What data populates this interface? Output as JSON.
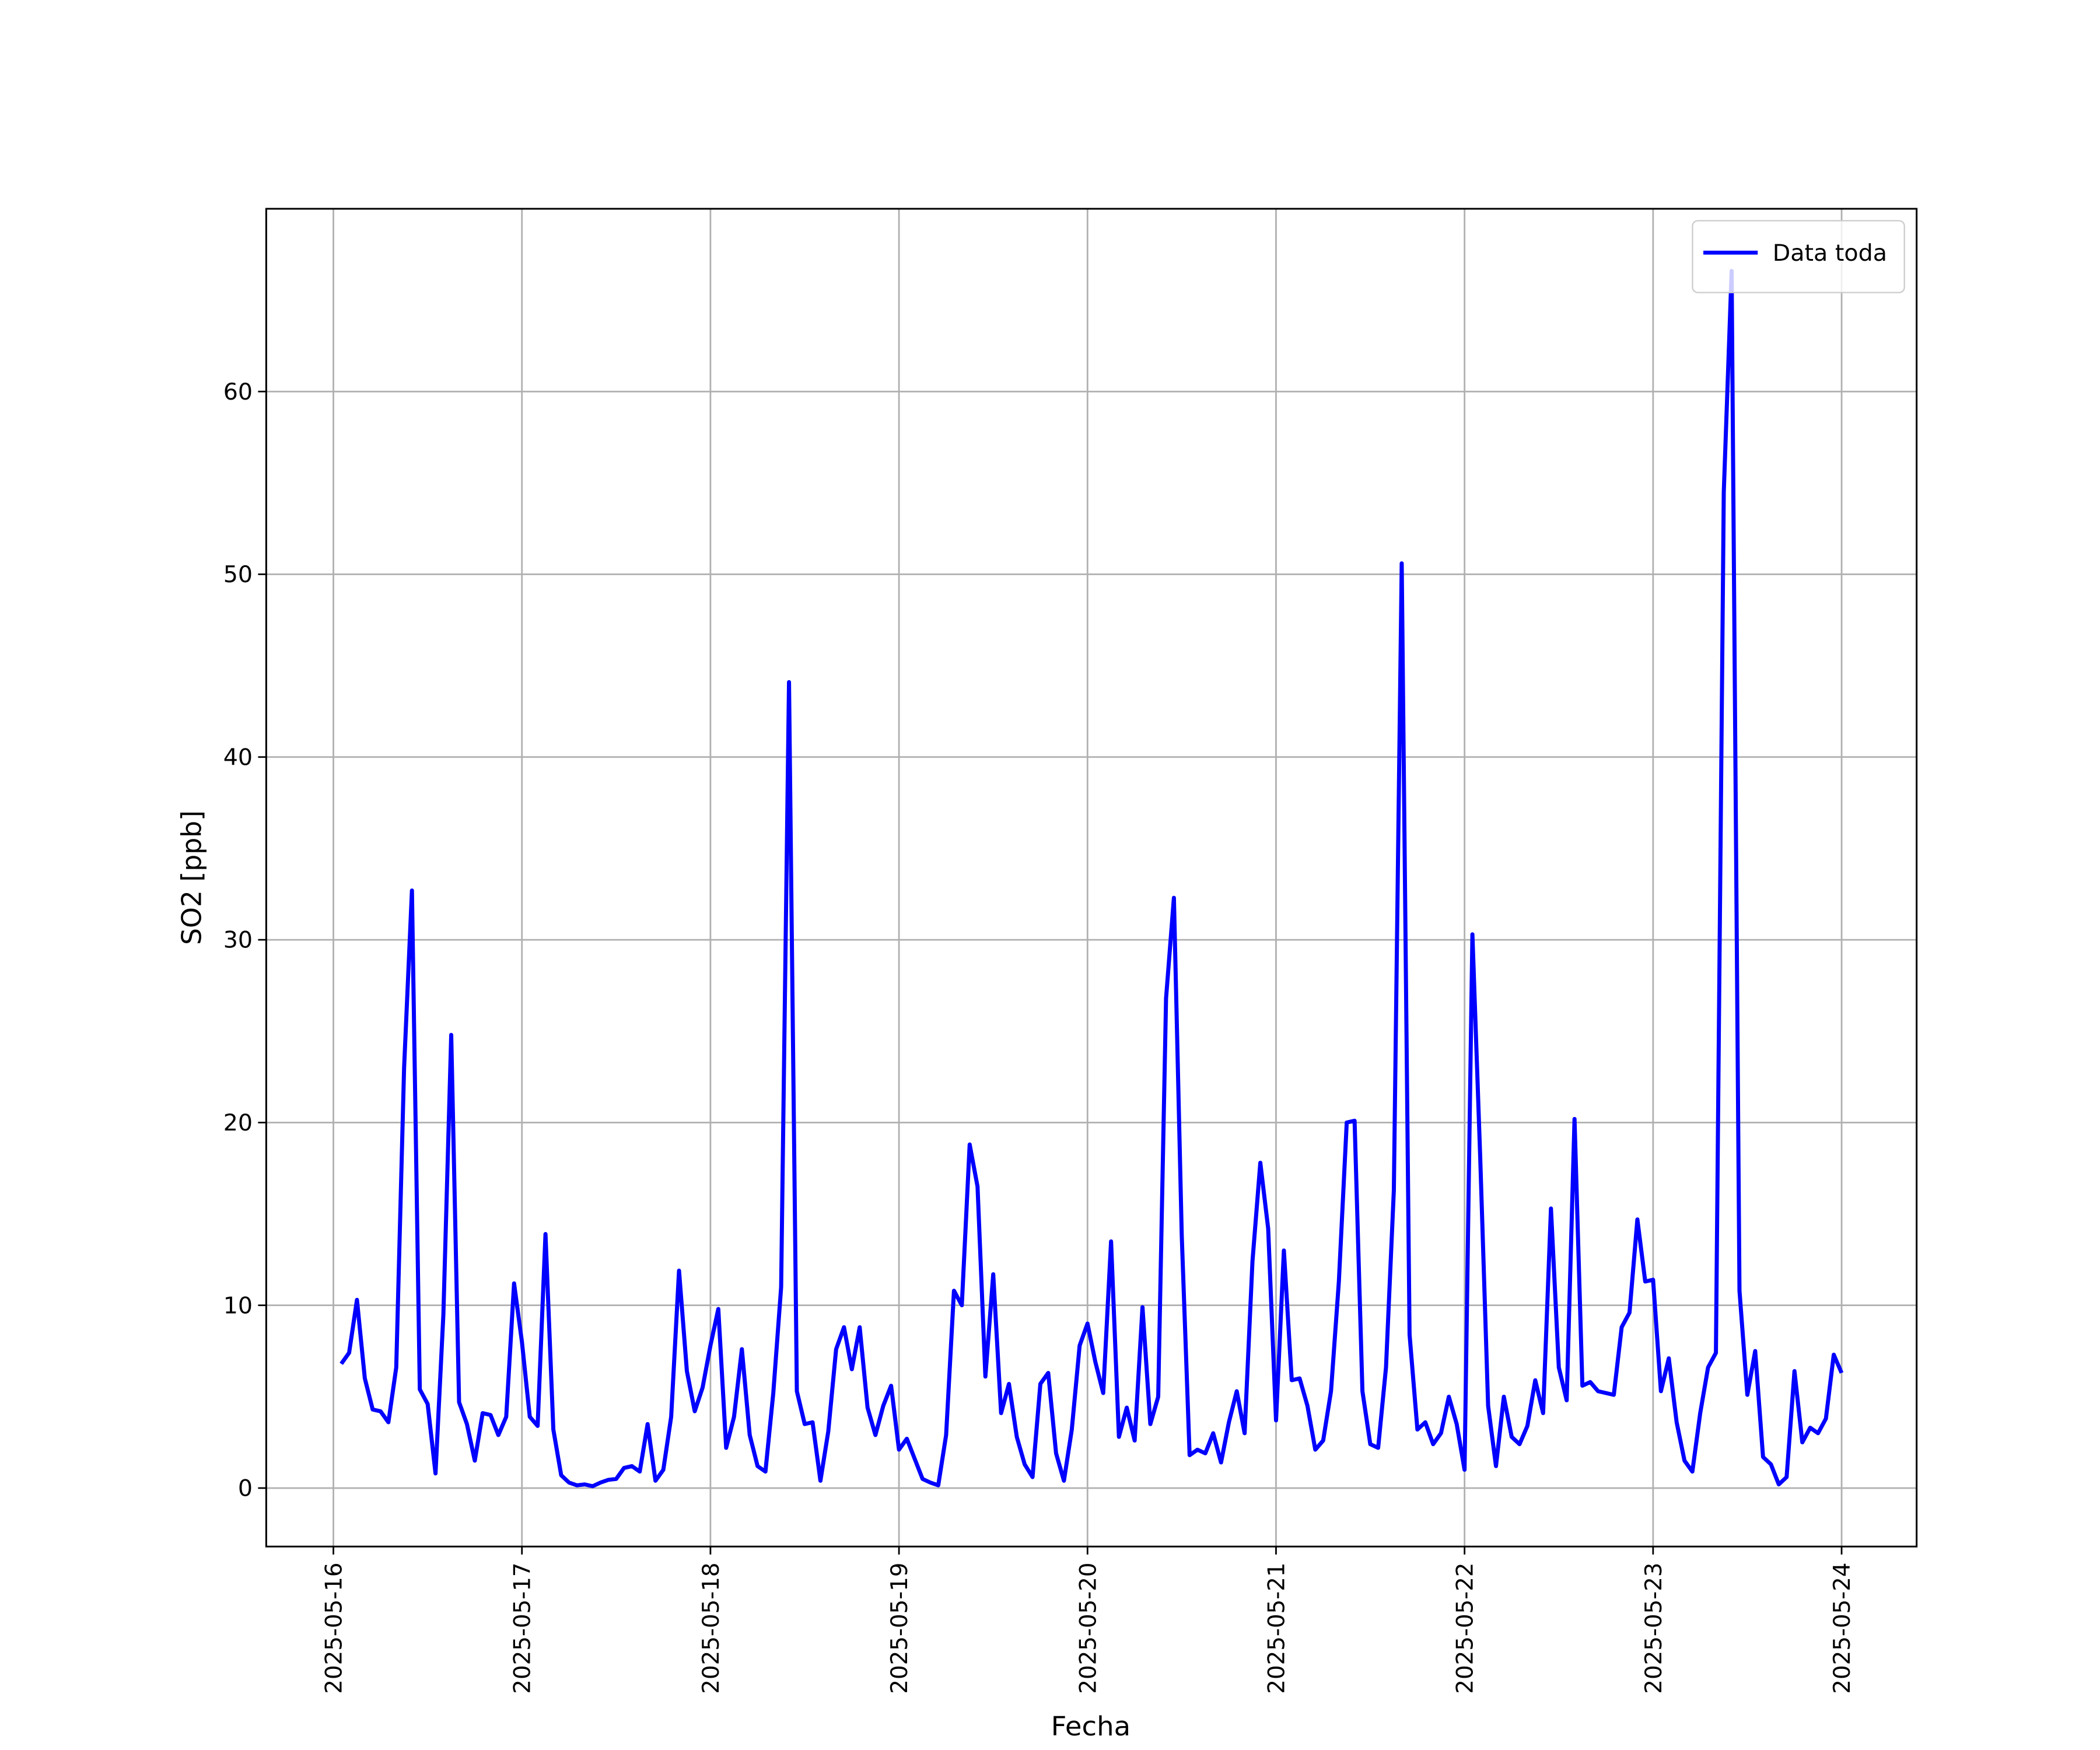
{
  "chart_data": {
    "type": "line",
    "xlabel": "Fecha",
    "ylabel": "SO2 [ppb]",
    "series": [
      {
        "name": "Data toda",
        "color": "#0000ff",
        "values": [
          6.8,
          7.4,
          10.3,
          6.0,
          4.3,
          4.2,
          3.6,
          6.6,
          23,
          32.7,
          5.4,
          4.6,
          0.8,
          9.5,
          24.8,
          4.7,
          3.5,
          1.5,
          4.1,
          4.0,
          2.9,
          3.9,
          11.2,
          8,
          3.9,
          3.4,
          13.9,
          3.2,
          0.7,
          0.3,
          0.15,
          0.2,
          0.1,
          0.3,
          0.45,
          0.5,
          1.1,
          1.2,
          0.9,
          3.5,
          0.4,
          1.0,
          3.9,
          11.9,
          6.4,
          4.2,
          5.5,
          7.8,
          9.8,
          2.2,
          3.9,
          7.6,
          2.9,
          1.2,
          0.9,
          5.2,
          11,
          44.1,
          5.3,
          3.5,
          3.6,
          0.4,
          3.1,
          7.6,
          8.8,
          6.5,
          8.8,
          4.4,
          2.9,
          4.5,
          5.6,
          2.1,
          2.7,
          1.6,
          0.5,
          0.3,
          0.15,
          2.9,
          10.8,
          10.0,
          18.8,
          16.5,
          6.1,
          11.7,
          4.1,
          5.7,
          2.8,
          1.3,
          0.6,
          5.7,
          6.3,
          1.9,
          0.4,
          3.2,
          7.8,
          9.0,
          6.9,
          5.2,
          13.5,
          2.8,
          4.4,
          2.6,
          9.9,
          3.5,
          5.0,
          26.8,
          32.3,
          13.8,
          1.8,
          2.1,
          1.9,
          3.0,
          1.4,
          3.6,
          5.3,
          3.0,
          12.4,
          17.8,
          14.2,
          3.7,
          13.0,
          5.9,
          6.0,
          4.5,
          2.1,
          2.6,
          5.3,
          11.3,
          20.0,
          20.1,
          5.3,
          2.4,
          2.2,
          6.6,
          16.3,
          50.6,
          8.4,
          3.2,
          3.6,
          2.4,
          3.0,
          5.0,
          3.5,
          1.0,
          30.3,
          18,
          4.5,
          1.2,
          5.0,
          2.8,
          2.4,
          3.4,
          5.9,
          4.1,
          15.3,
          6.6,
          4.8,
          20.2,
          5.6,
          5.8,
          5.3,
          5.2,
          5.1,
          8.8,
          9.6,
          14.7,
          11.3,
          11.4,
          5.3,
          7.1,
          3.6,
          1.5,
          0.9,
          4.1,
          6.6,
          7.4,
          54.5,
          66.6,
          10.8,
          5.1,
          7.5,
          1.7,
          1.3,
          0.2,
          0.6,
          6.4,
          2.5,
          3.3,
          3.0,
          3.8,
          7.3,
          6.3
        ]
      }
    ],
    "x": [
      "2025-05-16 01:00",
      "2025-05-16 02:00",
      "2025-05-16 03:00",
      "2025-05-16 04:00",
      "2025-05-16 05:00",
      "2025-05-16 06:00",
      "2025-05-16 07:00",
      "2025-05-16 08:00",
      "2025-05-16 09:00",
      "2025-05-16 10:00",
      "2025-05-16 11:00",
      "2025-05-16 12:00",
      "2025-05-16 13:00",
      "2025-05-16 14:00",
      "2025-05-16 15:00",
      "2025-05-16 16:00",
      "2025-05-16 17:00",
      "2025-05-16 18:00",
      "2025-05-16 19:00",
      "2025-05-16 20:00",
      "2025-05-16 21:00",
      "2025-05-16 22:00",
      "2025-05-16 23:00",
      "2025-05-17 00:00",
      "2025-05-17 01:00",
      "2025-05-17 02:00",
      "2025-05-17 03:00",
      "2025-05-17 04:00",
      "2025-05-17 05:00",
      "2025-05-17 06:00",
      "2025-05-17 07:00",
      "2025-05-17 08:00",
      "2025-05-17 09:00",
      "2025-05-17 10:00",
      "2025-05-17 11:00",
      "2025-05-17 12:00",
      "2025-05-17 13:00",
      "2025-05-17 14:00",
      "2025-05-17 15:00",
      "2025-05-17 16:00",
      "2025-05-17 17:00",
      "2025-05-17 18:00",
      "2025-05-17 19:00",
      "2025-05-17 20:00",
      "2025-05-17 21:00",
      "2025-05-17 22:00",
      "2025-05-17 23:00",
      "2025-05-18 00:00",
      "2025-05-18 01:00",
      "2025-05-18 02:00",
      "2025-05-18 03:00",
      "2025-05-18 04:00",
      "2025-05-18 05:00",
      "2025-05-18 06:00",
      "2025-05-18 07:00",
      "2025-05-18 08:00",
      "2025-05-18 09:00",
      "2025-05-18 10:00",
      "2025-05-18 11:00",
      "2025-05-18 12:00",
      "2025-05-18 13:00",
      "2025-05-18 14:00",
      "2025-05-18 15:00",
      "2025-05-18 16:00",
      "2025-05-18 17:00",
      "2025-05-18 18:00",
      "2025-05-18 19:00",
      "2025-05-18 20:00",
      "2025-05-18 21:00",
      "2025-05-18 22:00",
      "2025-05-18 23:00",
      "2025-05-19 00:00",
      "2025-05-19 01:00",
      "2025-05-19 02:00",
      "2025-05-19 03:00",
      "2025-05-19 04:00",
      "2025-05-19 05:00",
      "2025-05-19 06:00",
      "2025-05-19 07:00",
      "2025-05-19 08:00",
      "2025-05-19 09:00",
      "2025-05-19 10:00",
      "2025-05-19 11:00",
      "2025-05-19 12:00",
      "2025-05-19 13:00",
      "2025-05-19 14:00",
      "2025-05-19 15:00",
      "2025-05-19 16:00",
      "2025-05-19 17:00",
      "2025-05-19 18:00",
      "2025-05-19 19:00",
      "2025-05-19 20:00",
      "2025-05-19 21:00",
      "2025-05-19 22:00",
      "2025-05-19 23:00",
      "2025-05-20 00:00",
      "2025-05-20 01:00",
      "2025-05-20 02:00",
      "2025-05-20 03:00",
      "2025-05-20 04:00",
      "2025-05-20 05:00",
      "2025-05-20 06:00",
      "2025-05-20 07:00",
      "2025-05-20 08:00",
      "2025-05-20 09:00",
      "2025-05-20 10:00",
      "2025-05-20 11:00",
      "2025-05-20 12:00",
      "2025-05-20 13:00",
      "2025-05-20 14:00",
      "2025-05-20 15:00",
      "2025-05-20 16:00",
      "2025-05-20 17:00",
      "2025-05-20 18:00",
      "2025-05-20 19:00",
      "2025-05-20 20:00",
      "2025-05-20 21:00",
      "2025-05-20 22:00",
      "2025-05-20 23:00",
      "2025-05-21 00:00",
      "2025-05-21 01:00",
      "2025-05-21 02:00",
      "2025-05-21 03:00",
      "2025-05-21 04:00",
      "2025-05-21 05:00",
      "2025-05-21 06:00",
      "2025-05-21 07:00",
      "2025-05-21 08:00",
      "2025-05-21 09:00",
      "2025-05-21 10:00",
      "2025-05-21 11:00",
      "2025-05-21 12:00",
      "2025-05-21 13:00",
      "2025-05-21 14:00",
      "2025-05-21 15:00",
      "2025-05-21 16:00",
      "2025-05-21 17:00",
      "2025-05-21 18:00",
      "2025-05-21 19:00",
      "2025-05-21 20:00",
      "2025-05-21 21:00",
      "2025-05-21 22:00",
      "2025-05-21 23:00",
      "2025-05-22 00:00",
      "2025-05-22 01:00",
      "2025-05-22 02:00",
      "2025-05-22 03:00",
      "2025-05-22 04:00",
      "2025-05-22 05:00",
      "2025-05-22 06:00",
      "2025-05-22 07:00",
      "2025-05-22 08:00",
      "2025-05-22 09:00",
      "2025-05-22 10:00",
      "2025-05-22 11:00",
      "2025-05-22 12:00",
      "2025-05-22 13:00",
      "2025-05-22 14:00",
      "2025-05-22 15:00",
      "2025-05-22 16:00",
      "2025-05-22 17:00",
      "2025-05-22 18:00",
      "2025-05-22 19:00",
      "2025-05-22 20:00",
      "2025-05-22 21:00",
      "2025-05-22 22:00",
      "2025-05-22 23:00",
      "2025-05-23 00:00",
      "2025-05-23 01:00",
      "2025-05-23 02:00",
      "2025-05-23 03:00",
      "2025-05-23 04:00",
      "2025-05-23 05:00",
      "2025-05-23 06:00",
      "2025-05-23 07:00",
      "2025-05-23 08:00",
      "2025-05-23 09:00",
      "2025-05-23 10:00",
      "2025-05-23 11:00",
      "2025-05-23 12:00",
      "2025-05-23 13:00",
      "2025-05-23 14:00",
      "2025-05-23 15:00",
      "2025-05-23 16:00",
      "2025-05-23 17:00",
      "2025-05-23 18:00",
      "2025-05-23 19:00",
      "2025-05-23 20:00",
      "2025-05-23 21:00",
      "2025-05-23 22:00",
      "2025-05-23 23:00",
      "2025-05-24 00:00"
    ],
    "xlim": [
      "2025-05-15 15:27",
      "2025-05-24 09:33"
    ],
    "xticks": [
      "2025-05-16",
      "2025-05-17",
      "2025-05-18",
      "2025-05-19",
      "2025-05-20",
      "2025-05-21",
      "2025-05-22",
      "2025-05-23",
      "2025-05-24"
    ],
    "ylim": [
      -3.2,
      70
    ],
    "yticks": [
      0,
      10,
      20,
      30,
      40,
      50,
      60
    ],
    "grid": true,
    "legend": "upper right"
  }
}
